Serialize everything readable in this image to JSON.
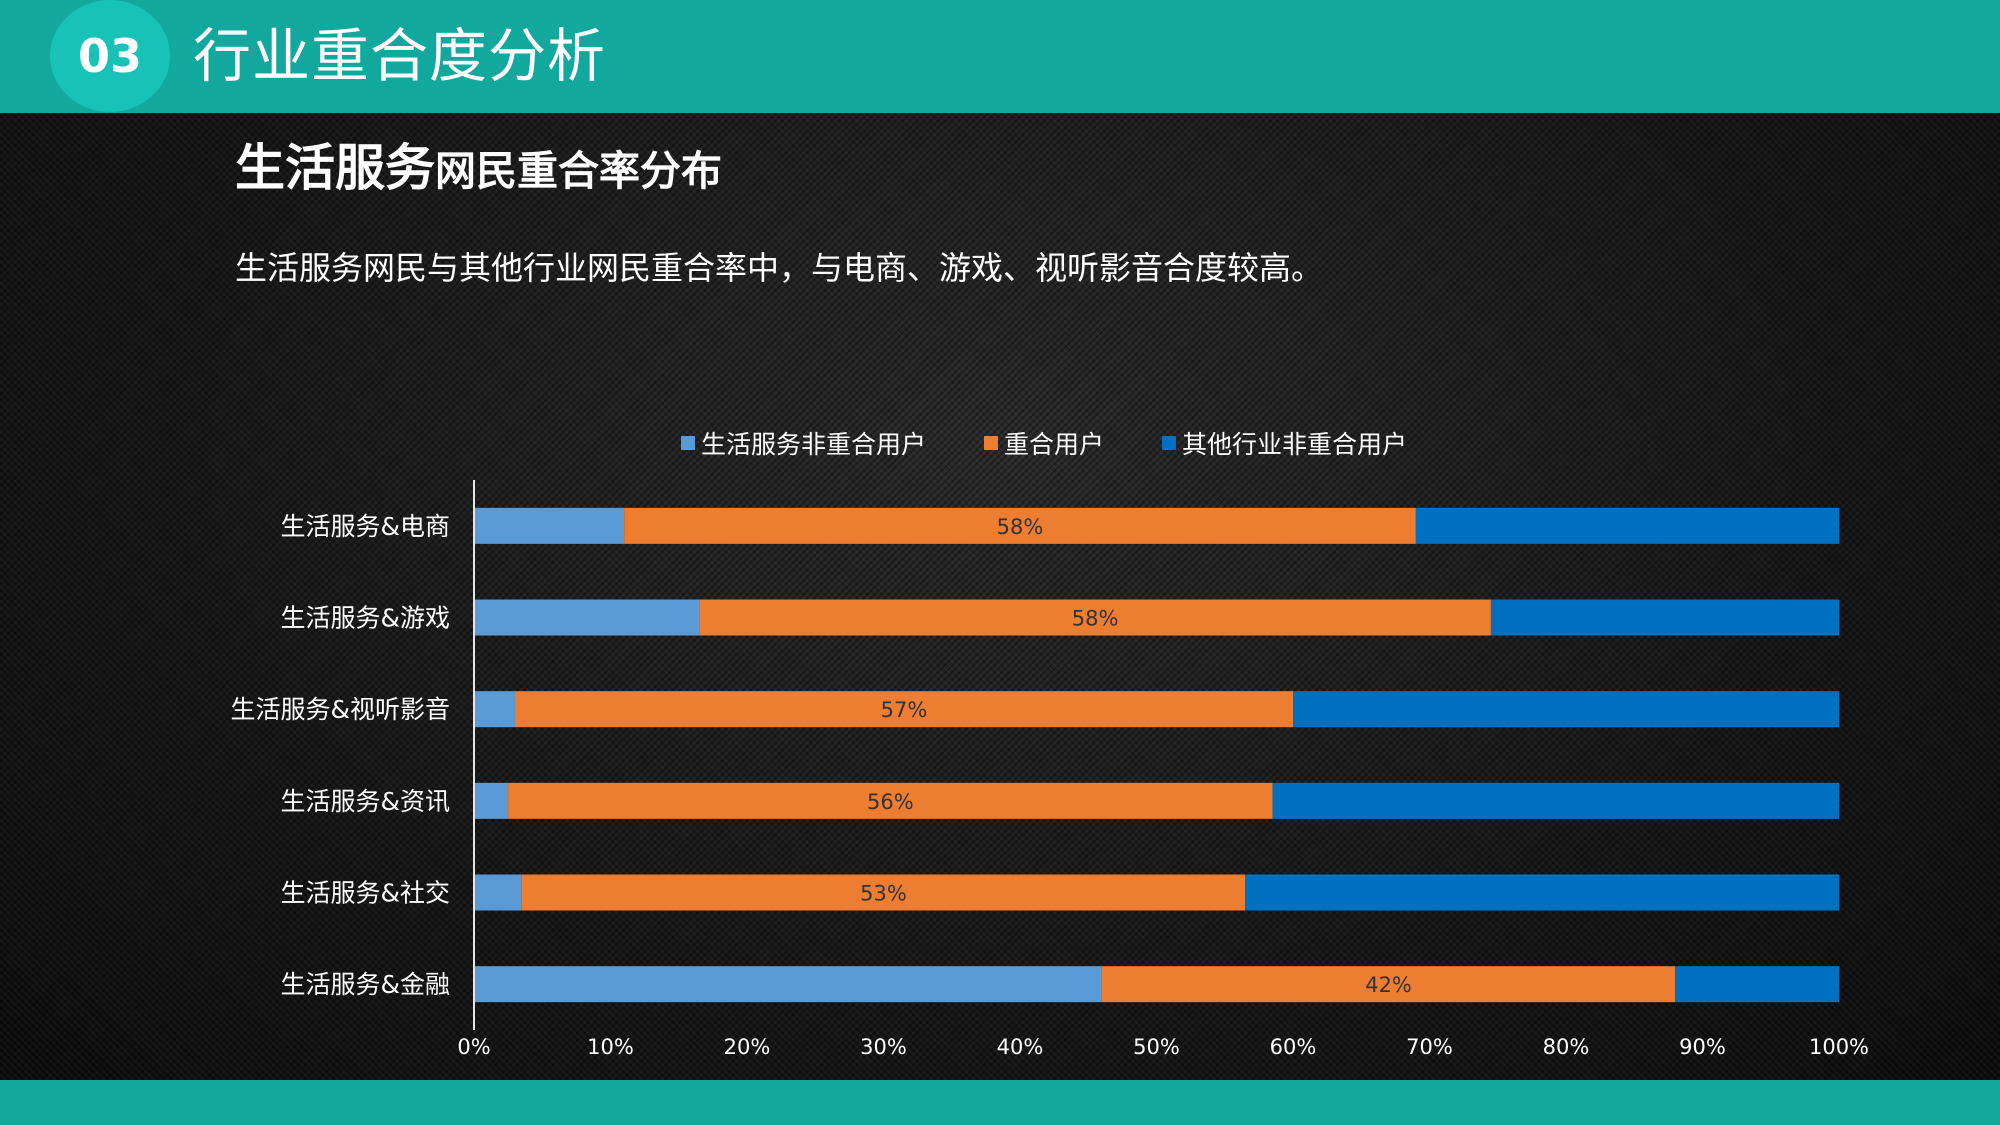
{
  "header": {
    "section_number": "03",
    "section_title": "行业重合度分析"
  },
  "slide": {
    "title_main": "生活服务",
    "title_rest": "网民重合率分布",
    "subtitle": "生活服务网民与其他行业网民重合率中，与电商、游戏、视听影音合度较高。"
  },
  "colors": {
    "header_bar": "#13a89e",
    "section_circle": "#19c2b6",
    "series_non_overlap": "#5b9bd5",
    "series_overlap": "#ed7d31",
    "series_other": "#0070c0"
  },
  "chart_data": {
    "type": "bar",
    "orientation": "horizontal",
    "stacked": "percent",
    "title": "生活服务网民重合率分布",
    "categories": [
      "生活服务&电商",
      "生活服务&游戏",
      "生活服务&视听影音",
      "生活服务&资讯",
      "生活服务&社交",
      "生活服务&金融"
    ],
    "series": [
      {
        "name": "生活服务非重合用户",
        "color": "#5b9bd5",
        "values": [
          11,
          16.5,
          3,
          2.5,
          3.5,
          46
        ]
      },
      {
        "name": "重合用户",
        "color": "#ed7d31",
        "values": [
          58,
          58,
          57,
          56,
          53,
          42
        ],
        "labels": [
          "58%",
          "58%",
          "57%",
          "56%",
          "53%",
          "42%"
        ]
      },
      {
        "name": "其他行业非重合用户",
        "color": "#0070c0",
        "values": [
          31,
          25.5,
          40,
          41.5,
          43.5,
          12
        ]
      }
    ],
    "xlim": [
      0,
      100
    ],
    "xticks": [
      "0%",
      "10%",
      "20%",
      "30%",
      "40%",
      "50%",
      "60%",
      "70%",
      "80%",
      "90%",
      "100%"
    ],
    "xlabel": "",
    "ylabel": "",
    "grid": false,
    "legend_position": "top-center"
  }
}
